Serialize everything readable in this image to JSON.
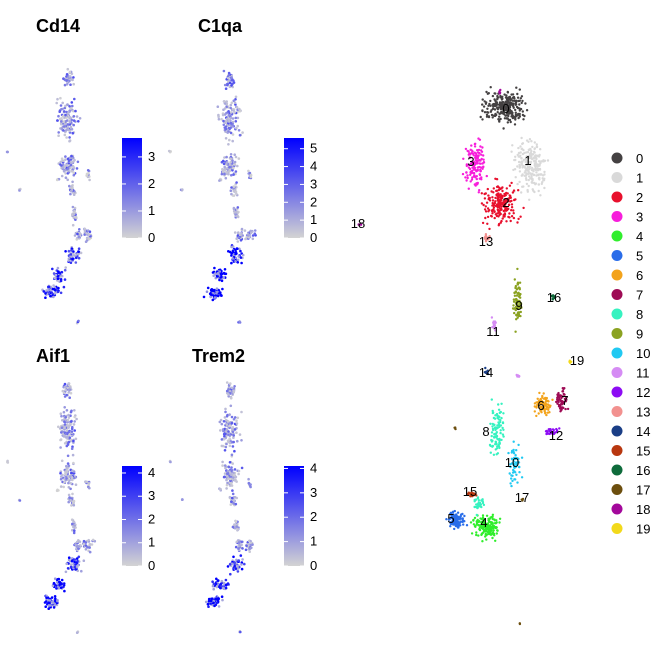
{
  "chart_data": [
    {
      "type": "scatter",
      "title": "Cd14",
      "color_scale": {
        "low": "#d3d3d3",
        "high": "#0000ff"
      },
      "colorbar_ticks": [
        0,
        1,
        2,
        3
      ],
      "value_range": [
        0,
        3.7
      ]
    },
    {
      "type": "scatter",
      "title": "C1qa",
      "color_scale": {
        "low": "#d3d3d3",
        "high": "#0000ff"
      },
      "colorbar_ticks": [
        0,
        1,
        2,
        3,
        4,
        5
      ],
      "value_range": [
        0,
        5.6
      ]
    },
    {
      "type": "scatter",
      "title": "Aif1",
      "color_scale": {
        "low": "#d3d3d3",
        "high": "#0000ff"
      },
      "colorbar_ticks": [
        0,
        1,
        2,
        3,
        4
      ],
      "value_range": [
        0,
        4.3
      ]
    },
    {
      "type": "scatter",
      "title": "Trem2",
      "color_scale": {
        "low": "#d3d3d3",
        "high": "#0000ff"
      },
      "colorbar_ticks": [
        0,
        1,
        2,
        3,
        4
      ],
      "value_range": [
        0,
        4.1
      ]
    },
    {
      "type": "scatter",
      "legend_position": "right",
      "clusters": [
        {
          "name": "0",
          "color": "#444142"
        },
        {
          "name": "1",
          "color": "#d9d9d9"
        },
        {
          "name": "2",
          "color": "#e8102d"
        },
        {
          "name": "3",
          "color": "#f71edb"
        },
        {
          "name": "4",
          "color": "#30ee2d"
        },
        {
          "name": "5",
          "color": "#2a6de9"
        },
        {
          "name": "6",
          "color": "#f3a31b"
        },
        {
          "name": "7",
          "color": "#9e0b55"
        },
        {
          "name": "8",
          "color": "#36f2c0"
        },
        {
          "name": "9",
          "color": "#8ba221"
        },
        {
          "name": "10",
          "color": "#21c9f2"
        },
        {
          "name": "11",
          "color": "#d58cf4"
        },
        {
          "name": "12",
          "color": "#8d0cf4"
        },
        {
          "name": "13",
          "color": "#f2918f"
        },
        {
          "name": "14",
          "color": "#1a3e86"
        },
        {
          "name": "15",
          "color": "#b8370f"
        },
        {
          "name": "16",
          "color": "#0e6b3b"
        },
        {
          "name": "17",
          "color": "#6c4e0e"
        },
        {
          "name": "18",
          "color": "#a3089b"
        },
        {
          "name": "19",
          "color": "#f2d91b"
        }
      ]
    }
  ]
}
